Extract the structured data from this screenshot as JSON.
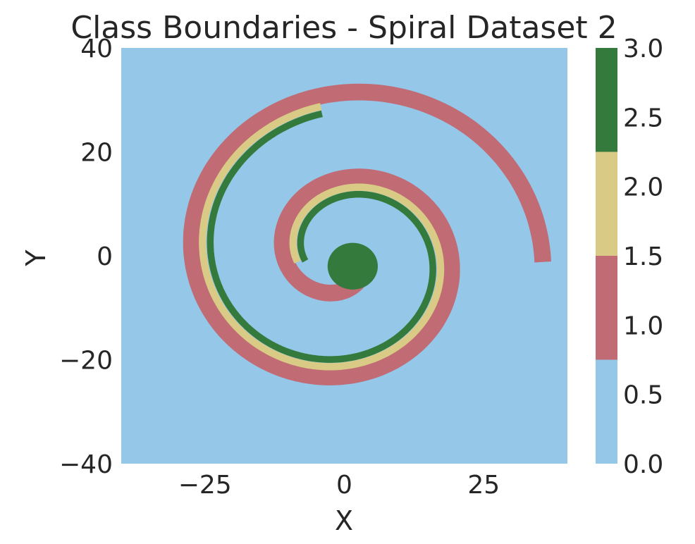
{
  "chart_data": {
    "type": "heatmap",
    "title": "Class Boundaries - Spiral Dataset 2",
    "xlabel": "X",
    "ylabel": "Y",
    "xlim": [
      -40,
      40
    ],
    "ylim": [
      -40,
      40
    ],
    "x_ticks": [
      {
        "value": -25,
        "label": "−25"
      },
      {
        "value": 0,
        "label": "0"
      },
      {
        "value": 25,
        "label": "25"
      }
    ],
    "y_ticks": [
      {
        "value": 40,
        "label": "40"
      },
      {
        "value": 20,
        "label": "20"
      },
      {
        "value": 0,
        "label": "0"
      },
      {
        "value": -20,
        "label": "−20"
      },
      {
        "value": -40,
        "label": "−40"
      }
    ],
    "grid": false,
    "colorbar": {
      "range": [
        0,
        3
      ],
      "ticks": [
        {
          "value": 0.0,
          "label": "0.0"
        },
        {
          "value": 0.5,
          "label": "0.5"
        },
        {
          "value": 1.0,
          "label": "1.0"
        },
        {
          "value": 1.5,
          "label": "1.5"
        },
        {
          "value": 2.0,
          "label": "2.0"
        },
        {
          "value": 2.5,
          "label": "2.5"
        },
        {
          "value": 3.0,
          "label": "3.0"
        }
      ],
      "levels": [
        {
          "class": 0,
          "from": 0.0,
          "to": 0.75,
          "color": "#95c7e8"
        },
        {
          "class": 1,
          "from": 0.75,
          "to": 1.5,
          "color": "#c16b75"
        },
        {
          "class": 2,
          "from": 1.5,
          "to": 2.25,
          "color": "#d9cb85"
        },
        {
          "class": 3,
          "from": 2.25,
          "to": 3.0,
          "color": "#357a3d"
        }
      ]
    },
    "background_class": 0,
    "regions": [
      {
        "name": "class-1-spiral-arm",
        "class": 1,
        "a_start": -1.2,
        "a_end": 12.6,
        "r0": 2.6,
        "k": 2.62,
        "width": 3.0
      },
      {
        "name": "class-2-spiral-arm",
        "class": 2,
        "a_start": 3.0,
        "a_end": 10.85,
        "r0": 0.6,
        "k": 2.62,
        "width": 1.3
      },
      {
        "name": "class-3-spiral-arm",
        "class": 3,
        "a_start": 3.0,
        "a_end": 10.85,
        "r0": -0.8,
        "k": 2.62,
        "width": 1.2
      },
      {
        "name": "class-3-center-blob",
        "class": 3,
        "cx": 1.5,
        "cy": -2,
        "radius": 4.5
      }
    ]
  }
}
